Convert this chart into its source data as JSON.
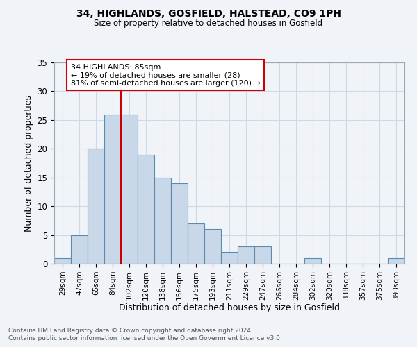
{
  "title": "34, HIGHLANDS, GOSFIELD, HALSTEAD, CO9 1PH",
  "subtitle": "Size of property relative to detached houses in Gosfield",
  "xlabel": "Distribution of detached houses by size in Gosfield",
  "ylabel": "Number of detached properties",
  "footnote1": "Contains HM Land Registry data © Crown copyright and database right 2024.",
  "footnote2": "Contains public sector information licensed under the Open Government Licence v3.0.",
  "categories": [
    "29sqm",
    "47sqm",
    "65sqm",
    "84sqm",
    "102sqm",
    "120sqm",
    "138sqm",
    "156sqm",
    "175sqm",
    "193sqm",
    "211sqm",
    "229sqm",
    "247sqm",
    "266sqm",
    "284sqm",
    "302sqm",
    "320sqm",
    "338sqm",
    "357sqm",
    "375sqm",
    "393sqm"
  ],
  "values": [
    1,
    5,
    20,
    26,
    26,
    19,
    15,
    14,
    7,
    6,
    2,
    3,
    3,
    0,
    0,
    1,
    0,
    0,
    0,
    0,
    1
  ],
  "bar_color": "#c8d8e8",
  "bar_edge_color": "#5a8ab0",
  "grid_color": "#d0d8e8",
  "background_color": "#f0f4f8",
  "vline_x": 3.5,
  "vline_color": "#cc0000",
  "annotation_text": "34 HIGHLANDS: 85sqm\n← 19% of detached houses are smaller (28)\n81% of semi-detached houses are larger (120) →",
  "annotation_box_color": "#ffffff",
  "annotation_box_edge": "#cc0000",
  "ylim": [
    0,
    35
  ],
  "yticks": [
    0,
    5,
    10,
    15,
    20,
    25,
    30,
    35
  ]
}
